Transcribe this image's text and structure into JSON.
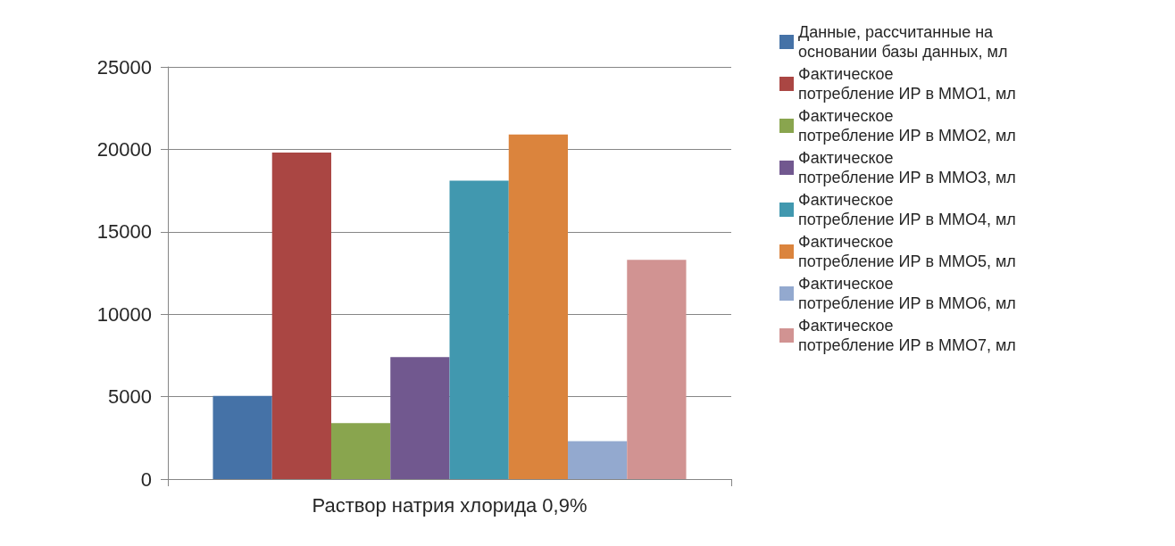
{
  "chart_data": {
    "type": "bar",
    "categories": [
      "Раствор натрия хлорида 0,9%"
    ],
    "series": [
      {
        "name": "Данные, рассчитанные на основании базы данных, мл",
        "color": "#4572a7",
        "values": [
          5050
        ]
      },
      {
        "name": "Фактическое потребление ИР в ММО1, мл",
        "color": "#aa4643",
        "values": [
          19800
        ]
      },
      {
        "name": "Фактическое потребление ИР в ММО2, мл",
        "color": "#89a54e",
        "values": [
          3400
        ]
      },
      {
        "name": "Фактическое потребление ИР в ММО3, мл",
        "color": "#71588f",
        "values": [
          7400
        ]
      },
      {
        "name": "Фактическое потребление ИР в ММО4, мл",
        "color": "#4198af",
        "values": [
          18100
        ]
      },
      {
        "name": "Фактическое потребление ИР в ММО5, мл",
        "color": "#db843d",
        "values": [
          20900
        ]
      },
      {
        "name": "Фактическое потребление ИР в ММО6, мл",
        "color": "#93a9cf",
        "values": [
          2300
        ]
      },
      {
        "name": "Фактическое потребление ИР в ММО7, мл",
        "color": "#d19392",
        "values": [
          13300
        ]
      }
    ],
    "ylim": [
      0,
      25000
    ],
    "yticks": [
      0,
      5000,
      10000,
      15000,
      20000,
      25000
    ],
    "grid": "y",
    "legend": "right"
  }
}
